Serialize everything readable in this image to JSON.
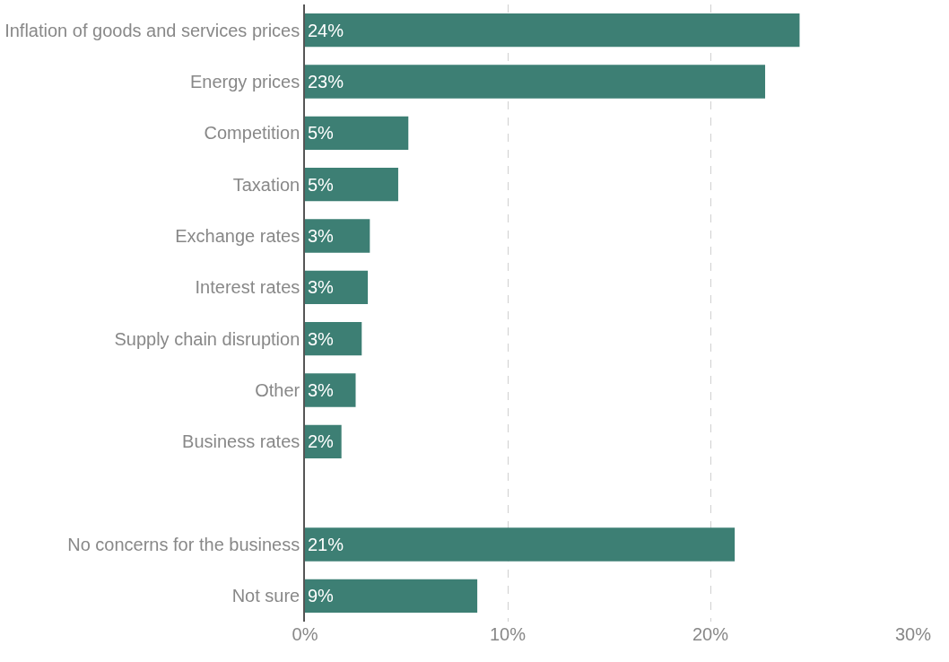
{
  "chart_data": {
    "type": "bar",
    "orientation": "horizontal",
    "categories": [
      "Inflation of goods and services prices",
      "Energy prices",
      "Competition",
      "Taxation",
      "Exchange rates",
      "Interest rates",
      "Supply chain disruption",
      "Other",
      "Business rates",
      null,
      "No concerns for the business",
      "Not sure"
    ],
    "values": [
      24.4,
      22.7,
      5.1,
      4.6,
      3.2,
      3.1,
      2.8,
      2.5,
      1.8,
      null,
      21.2,
      8.5
    ],
    "value_labels": [
      "24%",
      "23%",
      "5%",
      "5%",
      "3%",
      "3%",
      "3%",
      "3%",
      "2%",
      null,
      "21%",
      "9%"
    ],
    "color": "#3d7f74",
    "xlim": [
      0,
      30
    ],
    "xticks": [
      {
        "value": 0,
        "label": "0%"
      },
      {
        "value": 10,
        "label": "10%"
      },
      {
        "value": 20,
        "label": "20%"
      },
      {
        "value": 30,
        "label": "30%"
      }
    ],
    "grid": "x"
  }
}
